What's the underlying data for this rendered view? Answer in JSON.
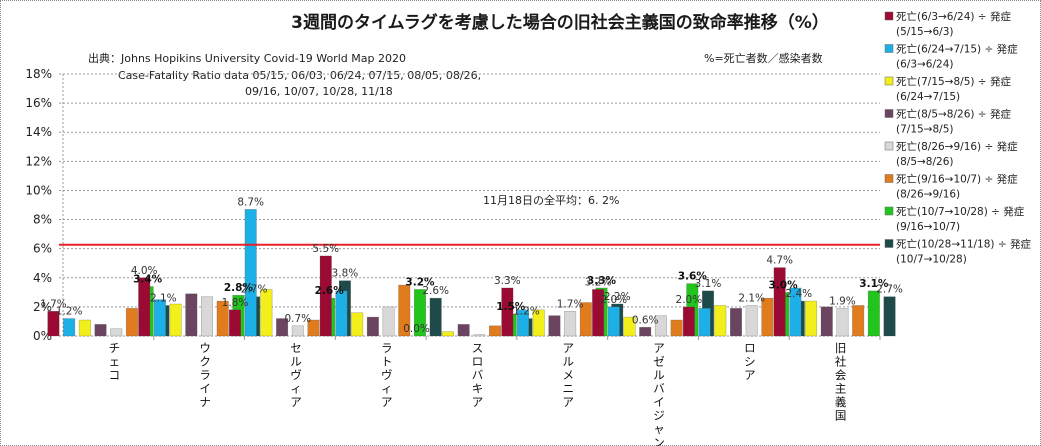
{
  "chart_data": {
    "type": "bar",
    "title": "3週間のタイムラグを考慮した場合の旧社会主義国の致命率推移（%）",
    "subtitle": "%=死亡者数／感染者数",
    "source_lines": [
      "出典：Johns Hopikins University   Covid-19 World Map 2020",
      "Case-Fatality Ratio data   05/15, 06/03, 06/24,  07/15, 08/05, 08/26,",
      "09/16, 10/07, 10/28,  11/18"
    ],
    "average_line": {
      "value": 6.2,
      "label": "11月18日の全平均：6. 2%",
      "color": "#e8202a"
    },
    "xlabel": "",
    "ylabel": "",
    "ylim": [
      0,
      18
    ],
    "yticks": [
      0,
      2,
      4,
      6,
      8,
      10,
      12,
      14,
      16,
      18
    ],
    "ytick_labels": [
      "0%",
      "2%",
      "4%",
      "6%",
      "8%",
      "10%",
      "12%",
      "14%",
      "16%",
      "18%"
    ],
    "grid": true,
    "legend_position": "right",
    "categories": [
      "チェコ",
      "ウクライナ",
      "セルヴィア",
      "ラトヴィア",
      "スロバキア",
      "アルメニア",
      "アゼルバイジャン",
      "ロシア",
      "旧社会主義国"
    ],
    "series": [
      {
        "name": "死亡(6/3→6/24)÷発症(5/15→6/3)",
        "line1": "死亡(6/3→6/24) ÷ 発症",
        "line2": "(5/15→6/3)",
        "color": "#9b0a33",
        "values": [
          1.7,
          4.0,
          1.8,
          5.5,
          0.0,
          3.3,
          3.2,
          2.0,
          4.7
        ],
        "labels": [
          "1.7%",
          "4.0%",
          "1.8%",
          "5.5%",
          "0.0%",
          "3.3%",
          "3.2%",
          "2.0%",
          "4.7%"
        ]
      },
      {
        "name": "死亡(6/24→7/15)÷発症(6/3→6/24)",
        "line1": "死亡(6/24→7/15) ÷ 発症",
        "line2": "(6/3→6/24)",
        "color": "#1db0e6",
        "values": [
          1.2,
          2.5,
          8.7,
          3.1,
          0.0,
          1.8,
          2.0,
          1.9,
          3.3
        ],
        "labels": [
          "1.2%",
          "",
          "8.7%",
          "",
          "",
          "",
          "2.0%",
          "",
          ""
        ]
      },
      {
        "name": "死亡(7/15→8/5)÷発症(6/24→7/15)",
        "line1": "死亡(7/15→8/5) ÷ 発症",
        "line2": "(6/24→7/15)",
        "color": "#f2ef1a",
        "values": [
          1.1,
          2.2,
          3.2,
          1.6,
          0.3,
          1.8,
          1.3,
          2.1,
          2.4
        ],
        "labels": [
          "",
          "",
          "",
          "",
          "",
          "",
          "",
          "",
          ""
        ]
      },
      {
        "name": "死亡(8/5→8/26)÷発症(7/15→8/5)",
        "line1": "死亡(8/5→8/26) ÷ 発症",
        "line2": "(7/15→8/5)",
        "color": "#6b4560",
        "values": [
          0.8,
          2.9,
          1.2,
          1.3,
          0.8,
          1.4,
          0.6,
          1.9,
          2.0
        ],
        "labels": [
          "",
          "",
          "",
          "",
          "",
          "",
          "0.6%",
          "",
          ""
        ]
      },
      {
        "name": "死亡(8/26→9/16)÷発症(8/5→8/26)",
        "line1": "死亡(8/26→9/16) ÷ 発症",
        "line2": "(8/5→8/26)",
        "color": "#d8d8d8",
        "values": [
          0.5,
          2.7,
          0.7,
          2.0,
          0.1,
          1.7,
          1.4,
          2.1,
          1.9
        ],
        "labels": [
          "",
          "",
          "0.7%",
          "",
          "",
          "1.7%",
          "",
          "2.1%",
          "1.9%"
        ]
      },
      {
        "name": "死亡(9/16→10/7)÷発症(8/26→9/16)",
        "line1": "死亡(9/16→10/7) ÷ 発症",
        "line2": "(8/26→9/16)",
        "color": "#e07b1e",
        "values": [
          1.9,
          2.4,
          1.1,
          3.5,
          0.7,
          2.3,
          1.1,
          2.6,
          2.1
        ],
        "labels": [
          "",
          "",
          "",
          "",
          "",
          "",
          "",
          "",
          ""
        ]
      },
      {
        "name": "死亡(10/7→10/28)÷発症(9/16→10/7)",
        "line1": "死亡(10/7→10/28) ÷ 発症",
        "line2": "(9/16→10/7)",
        "color": "#22c51c",
        "values": [
          3.4,
          2.8,
          2.6,
          3.2,
          1.5,
          3.3,
          3.6,
          3.0,
          3.1
        ],
        "labels": [
          "3.4%",
          "2.8%",
          "2.6%",
          "3.2%",
          "1.5%",
          "3.3%",
          "3.6%",
          "3.0%",
          "3.1%"
        ]
      },
      {
        "name": "死亡(10/28→11/18)÷発症(10/7→10/28)",
        "line1": "死亡(10/28→11/18) ÷ 発症",
        "line2": "(10/7→10/28)",
        "color": "#1f4a4a",
        "values": [
          2.1,
          2.7,
          3.8,
          2.6,
          1.2,
          2.2,
          3.1,
          2.4,
          2.7
        ],
        "labels": [
          "2.1%",
          "2.7%",
          "3.8%",
          "2.6%",
          "1.2%",
          "2.2%",
          "3.1%",
          "2.4%",
          "2.7%"
        ]
      }
    ],
    "bold_series_index": 6
  }
}
